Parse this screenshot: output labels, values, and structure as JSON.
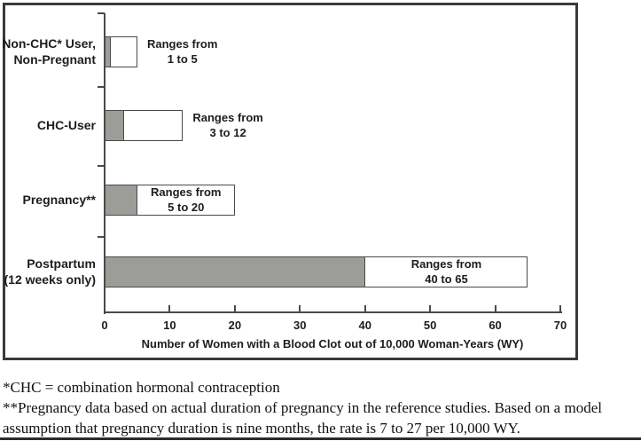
{
  "chart_data": {
    "type": "bar",
    "orientation": "horizontal",
    "xlabel": "Number of Women with a Blood Clot out of 10,000 Woman-Years (WY)",
    "x_ticks": [
      0,
      10,
      20,
      30,
      40,
      50,
      60,
      70
    ],
    "xlim": [
      0,
      70
    ],
    "grid": false,
    "legend": "none",
    "rows": [
      {
        "label_lines": [
          "Non-CHC* User,",
          "Non-Pregnant"
        ],
        "range_min": 1,
        "range_max": 5,
        "annotation_lines": [
          "Ranges from",
          "1 to 5"
        ],
        "annotation_placement": "outside"
      },
      {
        "label_lines": [
          "CHC-User"
        ],
        "range_min": 3,
        "range_max": 12,
        "annotation_lines": [
          "Ranges from",
          "3 to 12"
        ],
        "annotation_placement": "outside"
      },
      {
        "label_lines": [
          "Pregnancy**"
        ],
        "range_min": 5,
        "range_max": 20,
        "annotation_lines": [
          "Ranges from",
          "5 to 20"
        ],
        "annotation_placement": "inside"
      },
      {
        "label_lines": [
          "Postpartum",
          "(12 weeks only)"
        ],
        "range_min": 40,
        "range_max": 65,
        "annotation_lines": [
          "Ranges from",
          "40 to 65"
        ],
        "annotation_placement": "inside"
      }
    ],
    "colors": {
      "solid_segment": "#9c9c98",
      "range_segment": "#ffffff",
      "bar_border": "#4a4a4a",
      "axis": "#4a4a4a",
      "text": "#1d1d1d",
      "frame_border": "#3a3a3a"
    }
  },
  "footnotes": [
    "*CHC = combination hormonal contraception",
    "**Pregnancy data based on actual duration of pregnancy in the reference studies. Based on a model assumption that pregnancy duration is nine months, the rate is 7 to 27 per 10,000 WY."
  ]
}
